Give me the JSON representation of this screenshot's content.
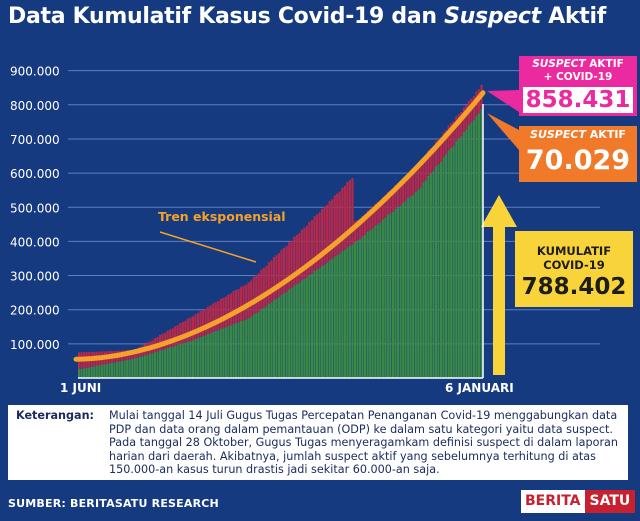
{
  "title": {
    "part1": "Data Kumulatif Kasus Covid-19 dan ",
    "italic": "Suspect",
    "part2": " Aktif"
  },
  "annotations": {
    "trend_label": "Tren eksponensial",
    "total": {
      "label_italic": "SUSPECT",
      "label_rest": " AKTIF",
      "label_line2": "+ COVID-19",
      "value": "858.431"
    },
    "suspect": {
      "label_italic": "SUSPECT",
      "label_rest": " AKTIF",
      "value": "70.029"
    },
    "kumulatif": {
      "label_line1": "KUMULATIF",
      "label_line2": "COVID-19",
      "value": "788.402"
    }
  },
  "note": {
    "label": "Keterangan:",
    "text": "Mulai tanggal 14 Juli Gugus Tugas Percepatan Penanganan Covid-19 menggabungkan data PDP dan data orang dalam pemantauan (ODP) ke dalam satu kategori yaitu data suspect. Pada tanggal 28 Oktober, Gugus Tugas menyeragamkam definisi suspect di dalam laporan harian dari daerah. Akibatnya, jumlah suspect aktif yang sebelumnya terhitung di atas 150.000-an kasus turun drastis jadi sekitar 60.000-an saja."
  },
  "source": "SUMBER: BERITASATU RESEARCH",
  "logo": {
    "part1": "BERITA",
    "part2": "SATU"
  },
  "colors": {
    "background": "#163a80",
    "cumulative": "#3a8a45",
    "suspect": "#b8284a",
    "trend": "#f5a12a",
    "arrow": "#f8d33a",
    "grid": "#5f7fbf"
  },
  "chart_data": {
    "type": "area",
    "x_tick_labels": [
      "1 JUNI",
      "6 JANUARI"
    ],
    "y_tick_labels": [
      "100.000",
      "200.000",
      "300.000",
      "400.000",
      "500.000",
      "600.000",
      "700.000",
      "800.000",
      "900.000"
    ],
    "ylim": [
      0,
      950000
    ],
    "grid": true,
    "series": [
      {
        "name": "Kumulatif Covid-19",
        "x": [
          "2020-06-01",
          "2020-07-01",
          "2020-08-01",
          "2020-09-01",
          "2020-10-01",
          "2020-11-01",
          "2020-12-01",
          "2021-01-06"
        ],
        "values": [
          26000,
          57000,
          110000,
          175000,
          290000,
          410000,
          545000,
          788402
        ]
      },
      {
        "name": "Suspect aktif + Covid-19",
        "x": [
          "2020-06-01",
          "2020-07-01",
          "2020-08-01",
          "2020-09-01",
          "2020-10-01",
          "2020-10-27",
          "2020-10-28",
          "2020-11-01",
          "2020-12-01",
          "2021-01-06"
        ],
        "values": [
          75000,
          82000,
          180000,
          280000,
          440000,
          585000,
          455000,
          470000,
          620000,
          858431
        ]
      },
      {
        "name": "Tren eksponensial",
        "x": [
          "2020-06-01",
          "2021-01-06"
        ],
        "values": [
          55000,
          835000
        ]
      }
    ]
  }
}
